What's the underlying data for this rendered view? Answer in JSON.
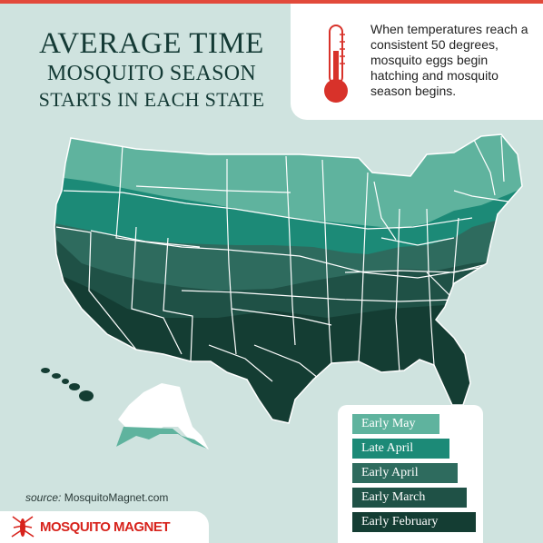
{
  "title": {
    "line1": "AVERAGE TIME",
    "line2": "MOSQUITO SEASON",
    "line3": "STARTS IN EACH STATE"
  },
  "callout": {
    "text": "When temperatures reach a consistent 50 degrees, mosquito eggs begin hatching and mosquito season begins."
  },
  "source": {
    "label": "source:",
    "value": "MosquitoMagnet.com"
  },
  "brand": {
    "name": "MOSQUITO MAGNET",
    "color": "#d7231c"
  },
  "legend": [
    {
      "label": "Early May",
      "color": "#5fb39e"
    },
    {
      "label": "Late April",
      "color": "#1c8a77"
    },
    {
      "label": "Early April",
      "color": "#2e6b5e"
    },
    {
      "label": "Early March",
      "color": "#1f5146"
    },
    {
      "label": "Early February",
      "color": "#143d33"
    }
  ],
  "map_colors": {
    "early_may": "#5fb39e",
    "late_april": "#1c8a77",
    "early_april": "#2e6b5e",
    "early_march": "#1f5146",
    "early_february": "#143d33",
    "alaska": "#5fb39e",
    "hawaii": "#143d33",
    "border": "#ffffff"
  }
}
